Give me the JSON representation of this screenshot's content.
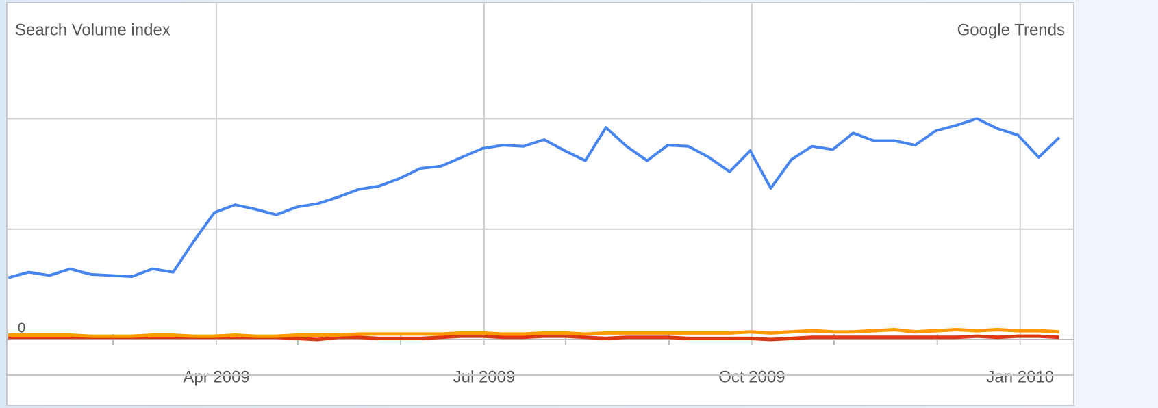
{
  "chart_data": {
    "type": "line",
    "title": "Search Volume index",
    "source": "Google Trends",
    "xlim": [
      -0.07,
      51.7
    ],
    "xticks": [
      {
        "value": 10.1,
        "label": "Apr 2009"
      },
      {
        "value": 23.09,
        "label": "Jul 2009"
      },
      {
        "value": 36.08,
        "label": "Oct 2009"
      },
      {
        "value": 49.1,
        "label": "Jan 2010"
      }
    ],
    "xminor": [
      5.08,
      14.05,
      19.04,
      27.04,
      32.06,
      40.07,
      45.08
    ],
    "ylim": [
      0,
      3.05
    ],
    "yticks": [
      0
    ],
    "ygrid": [
      1,
      2
    ],
    "grid": true,
    "series": [
      {
        "color": "#dc3912",
        "values": [
          0.02,
          0.02,
          0.02,
          0.02,
          0.02,
          0.02,
          0.02,
          0.02,
          0.02,
          0.02,
          0.02,
          0.02,
          0.02,
          0.02,
          0.01,
          0.0,
          0.02,
          0.02,
          0.01,
          0.01,
          0.01,
          0.02,
          0.03,
          0.03,
          0.02,
          0.02,
          0.03,
          0.03,
          0.02,
          0.01,
          0.02,
          0.02,
          0.02,
          0.01,
          0.01,
          0.01,
          0.01,
          0.0,
          0.01,
          0.02,
          0.02,
          0.02,
          0.02,
          0.02,
          0.02,
          0.02,
          0.02,
          0.03,
          0.02,
          0.03,
          0.03,
          0.02
        ]
      },
      {
        "color": "#ff9900",
        "values": [
          0.04,
          0.04,
          0.04,
          0.04,
          0.03,
          0.03,
          0.03,
          0.04,
          0.04,
          0.03,
          0.03,
          0.04,
          0.03,
          0.03,
          0.04,
          0.04,
          0.04,
          0.05,
          0.05,
          0.05,
          0.05,
          0.05,
          0.06,
          0.06,
          0.05,
          0.05,
          0.06,
          0.06,
          0.05,
          0.06,
          0.06,
          0.06,
          0.06,
          0.06,
          0.06,
          0.06,
          0.07,
          0.06,
          0.07,
          0.08,
          0.07,
          0.07,
          0.08,
          0.09,
          0.07,
          0.08,
          0.09,
          0.08,
          0.09,
          0.08,
          0.08,
          0.07
        ]
      },
      {
        "color": "#4684ee",
        "values": [
          0.56,
          0.61,
          0.58,
          0.64,
          0.59,
          0.58,
          0.57,
          0.64,
          0.61,
          0.89,
          1.15,
          1.22,
          1.18,
          1.13,
          1.2,
          1.23,
          1.29,
          1.36,
          1.39,
          1.46,
          1.55,
          1.57,
          1.65,
          1.73,
          1.76,
          1.75,
          1.81,
          1.71,
          1.62,
          1.92,
          1.75,
          1.62,
          1.76,
          1.75,
          1.65,
          1.52,
          1.71,
          1.37,
          1.63,
          1.75,
          1.72,
          1.87,
          1.8,
          1.8,
          1.76,
          1.89,
          1.94,
          2.0,
          1.91,
          1.85,
          1.65,
          1.83
        ]
      }
    ]
  }
}
